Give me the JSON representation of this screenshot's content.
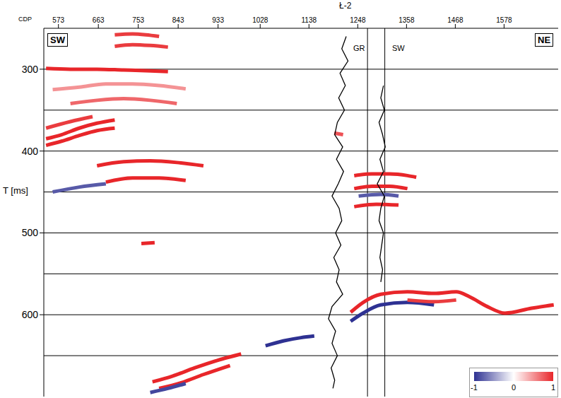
{
  "chart_data": {
    "type": "seismic_section",
    "x_label": "CDP",
    "y_label": "T [ms]",
    "xlim": [
      540,
      1700
    ],
    "xticks": [
      573,
      663,
      753,
      843,
      933,
      1028,
      1138,
      1248,
      1358,
      1468,
      1578
    ],
    "ylim": [
      250,
      700
    ],
    "yticks": [
      300,
      400,
      500,
      600
    ],
    "reference_lines": [
      300,
      350,
      400,
      450,
      500,
      550,
      600,
      650
    ],
    "annotations": [
      "SW",
      "NE"
    ],
    "well": {
      "name": "Ł-2",
      "track_lines": [
        1270,
        1309
      ],
      "logs": [
        {
          "name": "GR",
          "t": [
            260,
            275,
            290,
            305,
            320,
            335,
            350,
            365,
            380,
            395,
            410,
            425,
            440,
            455,
            470,
            485,
            500,
            515,
            530,
            545,
            560,
            575,
            590,
            605,
            620,
            635,
            650,
            665,
            680,
            690
          ],
          "cdp": [
            1222,
            1212,
            1226,
            1208,
            1220,
            1205,
            1218,
            1202,
            1196,
            1214,
            1200,
            1216,
            1204,
            1190,
            1206,
            1212,
            1198,
            1210,
            1194,
            1206,
            1200,
            1214,
            1190,
            1182,
            1198,
            1190,
            1202,
            1188,
            1196,
            1192
          ]
        },
        {
          "name": "SW",
          "t": [
            320,
            335,
            350,
            365,
            380,
            395,
            410,
            425,
            440,
            455,
            470,
            485,
            500,
            515,
            530,
            545,
            560
          ],
          "cdp": [
            1306,
            1300,
            1308,
            1296,
            1304,
            1310,
            1298,
            1306,
            1292,
            1308,
            1300,
            1296,
            1306,
            1302,
            1298,
            1304,
            1300
          ]
        }
      ]
    },
    "reflectors": [
      {
        "cdp": [
          545,
          600,
          660,
          720,
          780,
          820
        ],
        "t": [
          299,
          300,
          300,
          301,
          302,
          303
        ],
        "amplitude": 1
      },
      {
        "cdp": [
          700,
          740,
          770,
          800
        ],
        "t": [
          258,
          257,
          258,
          260
        ],
        "amplitude": 0.9
      },
      {
        "cdp": [
          700,
          740,
          780,
          820
        ],
        "t": [
          272,
          270,
          271,
          273
        ],
        "amplitude": 0.9
      },
      {
        "cdp": [
          560,
          620,
          680,
          740,
          800,
          860
        ],
        "t": [
          325,
          322,
          318,
          318,
          320,
          324
        ],
        "amplitude": 0.5
      },
      {
        "cdp": [
          600,
          660,
          720,
          780,
          840
        ],
        "t": [
          342,
          338,
          336,
          338,
          342
        ],
        "amplitude": 0.7
      },
      {
        "cdp": [
          545,
          580,
          620,
          660,
          700
        ],
        "t": [
          385,
          380,
          372,
          366,
          362
        ],
        "amplitude": 1
      },
      {
        "cdp": [
          545,
          580,
          620,
          660,
          700
        ],
        "t": [
          393,
          388,
          381,
          375,
          372
        ],
        "amplitude": 1
      },
      {
        "cdp": [
          545,
          600,
          650
        ],
        "t": [
          372,
          364,
          358
        ],
        "amplitude": 0.9
      },
      {
        "cdp": [
          660,
          720,
          780,
          840,
          900
        ],
        "t": [
          418,
          413,
          412,
          414,
          418
        ],
        "amplitude": 1
      },
      {
        "cdp": [
          680,
          740,
          800,
          860
        ],
        "t": [
          438,
          433,
          433,
          436
        ],
        "amplitude": 1
      },
      {
        "cdp": [
          560,
          620,
          680
        ],
        "t": [
          450,
          444,
          440
        ],
        "amplitude": -0.8
      },
      {
        "cdp": [
          760,
          790
        ],
        "t": [
          513,
          512
        ],
        "amplitude": 1
      },
      {
        "cdp": [
          1240,
          1280,
          1320,
          1360,
          1380
        ],
        "t": [
          430,
          428,
          428,
          430,
          432
        ],
        "amplitude": 1
      },
      {
        "cdp": [
          1240,
          1280,
          1320,
          1360
        ],
        "t": [
          446,
          443,
          443,
          446
        ],
        "amplitude": 1
      },
      {
        "cdp": [
          1240,
          1290,
          1340
        ],
        "t": [
          468,
          465,
          466
        ],
        "amplitude": 1
      },
      {
        "cdp": [
          1250,
          1300,
          1340
        ],
        "t": [
          455,
          453,
          455
        ],
        "amplitude": -0.8
      },
      {
        "cdp": [
          1232,
          1260,
          1300,
          1360,
          1420,
          1470,
          1500,
          1540,
          1580,
          1640,
          1690
        ],
        "t": [
          597,
          585,
          575,
          572,
          574,
          572,
          578,
          590,
          598,
          592,
          588
        ],
        "amplitude": 1
      },
      {
        "cdp": [
          1232,
          1260,
          1300,
          1360,
          1420
        ],
        "t": [
          608,
          598,
          588,
          585,
          588
        ],
        "amplitude": -1
      },
      {
        "cdp": [
          1360,
          1420,
          1470
        ],
        "t": [
          582,
          584,
          582
        ],
        "amplitude": 0.9
      },
      {
        "cdp": [
          785,
          830,
          880,
          930,
          985
        ],
        "t": [
          682,
          675,
          665,
          656,
          648
        ],
        "amplitude": 1
      },
      {
        "cdp": [
          800,
          850,
          900,
          960
        ],
        "t": [
          690,
          683,
          673,
          662
        ],
        "amplitude": 1
      },
      {
        "cdp": [
          780,
          820,
          860
        ],
        "t": [
          695,
          690,
          684
        ],
        "amplitude": -0.9
      },
      {
        "cdp": [
          1040,
          1080,
          1120,
          1150
        ],
        "t": [
          638,
          632,
          628,
          626
        ],
        "amplitude": -1
      },
      {
        "cdp": [
          1195,
          1215
        ],
        "t": [
          378,
          380
        ],
        "amplitude": 0.8
      }
    ],
    "colorbar": {
      "range": [
        -1,
        1
      ],
      "ticks": [
        -1,
        0,
        1
      ],
      "colors": [
        "#2e3192",
        "#ffffff",
        "#e8262a"
      ]
    }
  }
}
